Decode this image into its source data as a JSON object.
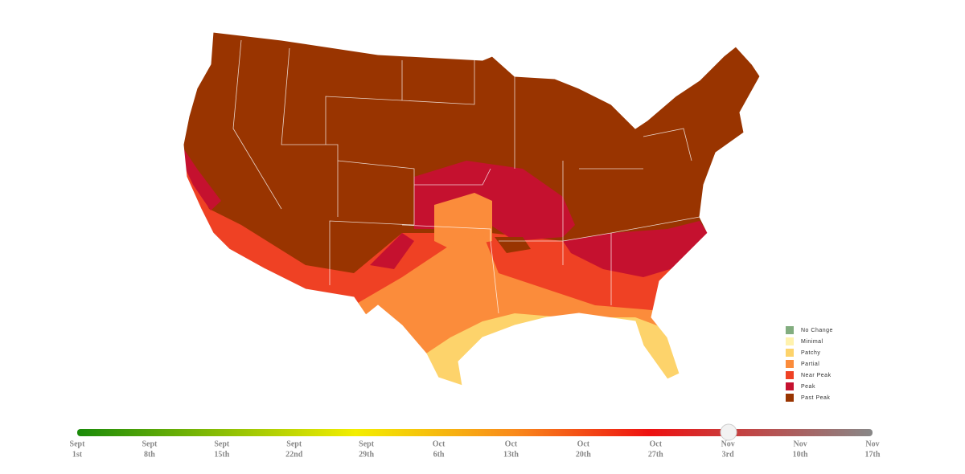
{
  "legend": {
    "items": [
      {
        "label": "No Change",
        "color": "#82ad7f"
      },
      {
        "label": "Minimal",
        "color": "#fff2ad"
      },
      {
        "label": "Patchy",
        "color": "#fdd36b"
      },
      {
        "label": "Partial",
        "color": "#fb8c3b"
      },
      {
        "label": "Near Peak",
        "color": "#ef4124"
      },
      {
        "label": "Peak",
        "color": "#c5112f"
      },
      {
        "label": "Past Peak",
        "color": "#993400"
      }
    ]
  },
  "slider": {
    "ticks": [
      {
        "month": "Sept",
        "day": "1st"
      },
      {
        "month": "Sept",
        "day": "8th"
      },
      {
        "month": "Sept",
        "day": "15th"
      },
      {
        "month": "Sept",
        "day": "22nd"
      },
      {
        "month": "Sept",
        "day": "29th"
      },
      {
        "month": "Oct",
        "day": "6th"
      },
      {
        "month": "Oct",
        "day": "13th"
      },
      {
        "month": "Oct",
        "day": "20th"
      },
      {
        "month": "Oct",
        "day": "27th"
      },
      {
        "month": "Nov",
        "day": "3rd"
      },
      {
        "month": "Nov",
        "day": "10th"
      },
      {
        "month": "Nov",
        "day": "17th"
      }
    ]
  }
}
